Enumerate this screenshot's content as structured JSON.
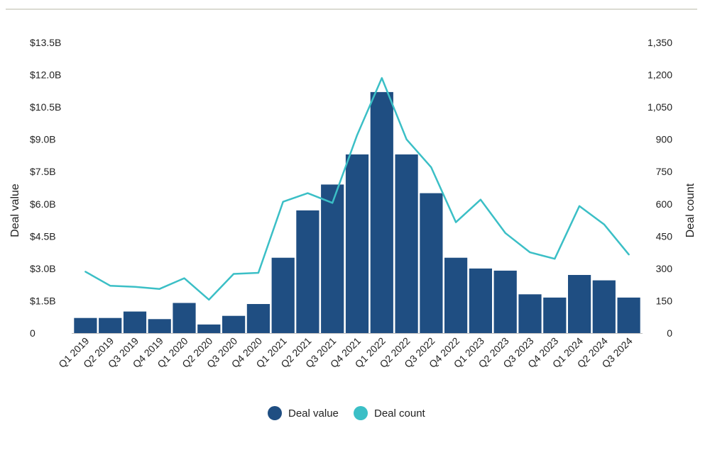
{
  "chart_data": {
    "type": "bar+line",
    "title": "",
    "categories": [
      "Q1 2019",
      "Q2 2019",
      "Q3 2019",
      "Q4 2019",
      "Q1 2020",
      "Q2 2020",
      "Q3 2020",
      "Q4 2020",
      "Q1 2021",
      "Q2 2021",
      "Q3 2021",
      "Q4 2021",
      "Q1 2022",
      "Q2 2022",
      "Q3 2022",
      "Q4 2022",
      "Q1 2023",
      "Q2 2023",
      "Q3 2023",
      "Q4 2023",
      "Q1 2024",
      "Q2 2024",
      "Q3 2024"
    ],
    "series": [
      {
        "name": "Deal value",
        "kind": "bar",
        "axis": "left",
        "unit": "USD billions",
        "color": "#1f4e82",
        "values": [
          0.7,
          0.7,
          1.0,
          0.65,
          1.4,
          0.4,
          0.8,
          1.35,
          3.5,
          5.7,
          6.9,
          8.3,
          11.2,
          8.3,
          6.5,
          3.5,
          3.0,
          2.9,
          1.8,
          1.65,
          2.7,
          2.45,
          1.65
        ]
      },
      {
        "name": "Deal count",
        "kind": "line",
        "axis": "right",
        "color": "#3bbfc6",
        "values": [
          285,
          220,
          215,
          205,
          255,
          155,
          275,
          280,
          610,
          650,
          605,
          920,
          1185,
          900,
          770,
          515,
          620,
          465,
          375,
          345,
          590,
          505,
          365
        ]
      }
    ],
    "ylabel_left": "Deal value",
    "ylabel_right": "Deal count",
    "ylim_left": [
      0,
      13.5
    ],
    "ylim_right": [
      0,
      1350
    ],
    "yticks_left": [
      "0",
      "$1.5B",
      "$3.0B",
      "$4.5B",
      "$6.0B",
      "$7.5B",
      "$9.0B",
      "$10.5B",
      "$12.0B",
      "$13.5B"
    ],
    "yticks_right": [
      "0",
      "150",
      "300",
      "450",
      "600",
      "750",
      "900",
      "1,050",
      "1,200",
      "1,350"
    ],
    "legend": {
      "position": "bottom-center",
      "items": [
        {
          "label": "Deal value",
          "color": "#1f4e82"
        },
        {
          "label": "Deal count",
          "color": "#3bbfc6"
        }
      ]
    },
    "grid": false
  }
}
